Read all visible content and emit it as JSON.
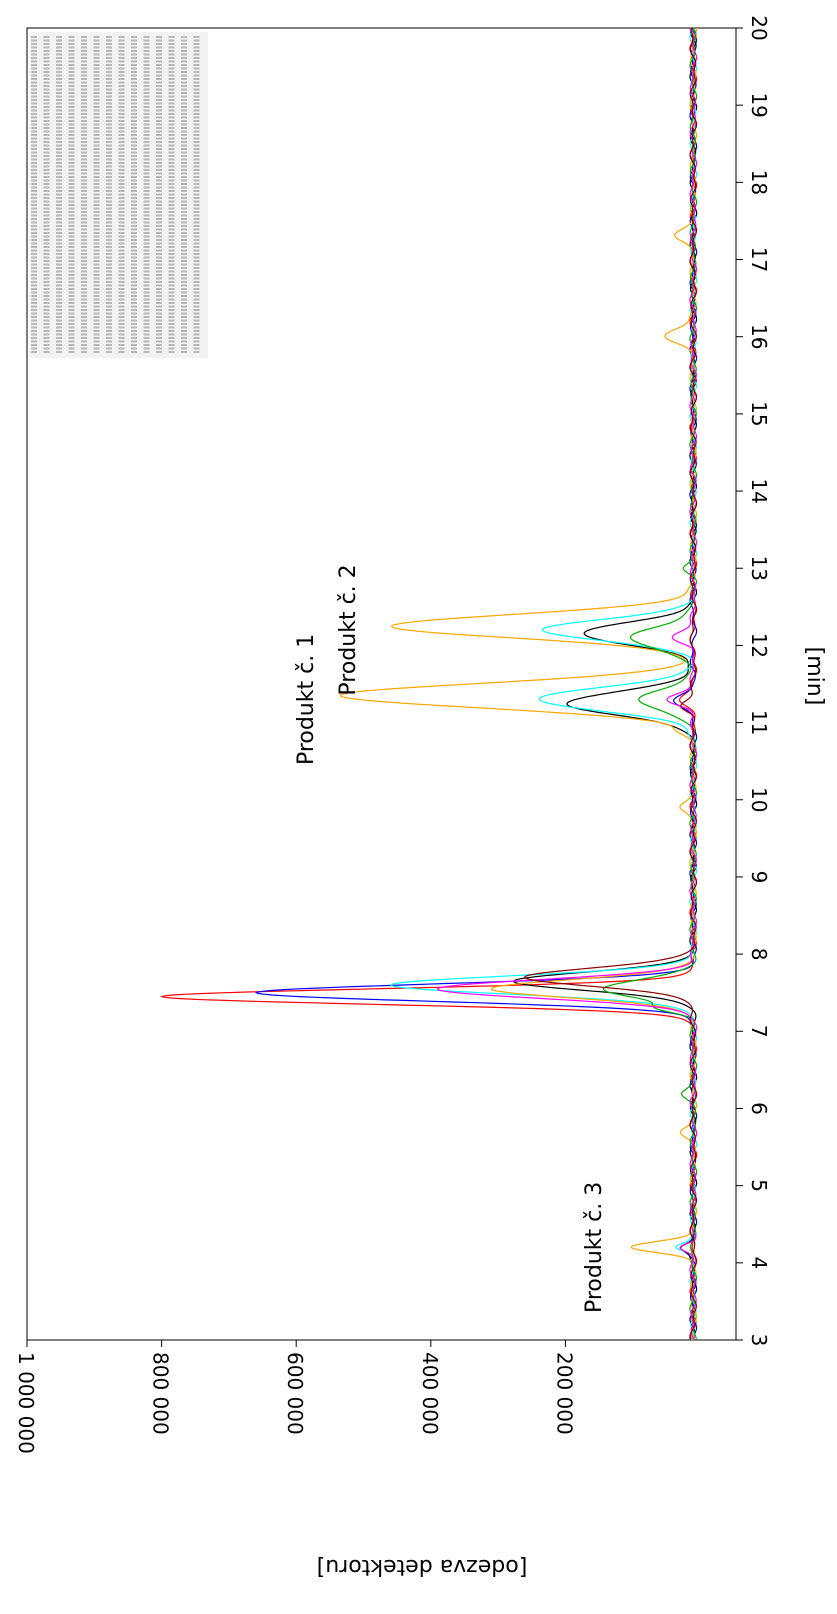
{
  "chart_data": {
    "type": "line",
    "orientation": "rotated-90-clockwise",
    "xlabel": "[min]",
    "ylabel": "[odezva detektoru]",
    "xlim": [
      3,
      20
    ],
    "ylim": [
      0,
      1000000
    ],
    "x_ticks": [
      "3",
      "4",
      "5",
      "6",
      "7",
      "8",
      "9",
      "10",
      "11",
      "12",
      "13",
      "14",
      "15",
      "16",
      "17",
      "18",
      "19",
      "20"
    ],
    "y_ticks": [
      "1 000 000",
      "800 000",
      "600 000",
      "400 000",
      "200 000"
    ],
    "annotations": [
      {
        "text": "Produkt č. 1",
        "x": 11.3
      },
      {
        "text": "Produkt č. 2",
        "x": 12.2
      },
      {
        "text": "Produkt č. 3",
        "x": 4.2
      }
    ],
    "baseline": 10000,
    "series": [
      {
        "color": "#FF0000",
        "peaks": [
          {
            "x": 7.45,
            "y": 790000,
            "w": 0.1
          }
        ],
        "bumps": [
          {
            "x": 11.3,
            "y": 16000,
            "w": 0.08
          }
        ]
      },
      {
        "color": "#0000FF",
        "peaks": [
          {
            "x": 7.5,
            "y": 650000,
            "w": 0.11
          }
        ],
        "bumps": [
          {
            "x": 11.3,
            "y": 28000,
            "w": 0.08
          },
          {
            "x": 4.2,
            "y": 16000,
            "w": 0.05
          }
        ]
      },
      {
        "color": "#000000",
        "peaks": [
          {
            "x": 7.65,
            "y": 265000,
            "w": 0.12
          },
          {
            "x": 11.25,
            "y": 190000,
            "w": 0.15
          },
          {
            "x": 12.15,
            "y": 165000,
            "w": 0.14
          }
        ],
        "bumps": [
          {
            "x": 4.2,
            "y": 22000,
            "w": 0.05
          }
        ]
      },
      {
        "color": "#00FFFF",
        "peaks": [
          {
            "x": 7.6,
            "y": 450000,
            "w": 0.12
          },
          {
            "x": 11.3,
            "y": 230000,
            "w": 0.15
          },
          {
            "x": 12.2,
            "y": 220000,
            "w": 0.14
          }
        ],
        "bumps": [
          {
            "x": 4.2,
            "y": 30000,
            "w": 0.05
          }
        ]
      },
      {
        "color": "#FFA500",
        "peaks": [
          {
            "x": 7.55,
            "y": 300000,
            "w": 0.12
          },
          {
            "x": 11.35,
            "y": 520000,
            "w": 0.16
          },
          {
            "x": 12.25,
            "y": 450000,
            "w": 0.15
          }
        ],
        "bumps": [
          {
            "x": 4.2,
            "y": 90000,
            "w": 0.07
          },
          {
            "x": 16.0,
            "y": 40000,
            "w": 0.1
          },
          {
            "x": 17.3,
            "y": 30000,
            "w": 0.08
          },
          {
            "x": 5.7,
            "y": 16000,
            "w": 0.06
          },
          {
            "x": 9.9,
            "y": 18000,
            "w": 0.06
          },
          {
            "x": 10.9,
            "y": 20000,
            "w": 0.06
          }
        ]
      },
      {
        "color": "#00B000",
        "peaks": [
          {
            "x": 7.55,
            "y": 130000,
            "w": 0.12
          },
          {
            "x": 11.3,
            "y": 80000,
            "w": 0.14
          },
          {
            "x": 12.1,
            "y": 95000,
            "w": 0.14
          }
        ],
        "bumps": [
          {
            "x": 7.3,
            "y": 45000,
            "w": 0.06
          },
          {
            "x": 6.2,
            "y": 14000,
            "w": 0.06
          },
          {
            "x": 13.0,
            "y": 14000,
            "w": 0.06
          }
        ]
      },
      {
        "color": "#FF00FF",
        "peaks": [
          {
            "x": 7.55,
            "y": 380000,
            "w": 0.12
          }
        ],
        "bumps": [
          {
            "x": 11.3,
            "y": 40000,
            "w": 0.08
          },
          {
            "x": 12.1,
            "y": 30000,
            "w": 0.08
          },
          {
            "x": 4.2,
            "y": 20000,
            "w": 0.05
          }
        ]
      },
      {
        "color": "#8B0000",
        "peaks": [
          {
            "x": 7.7,
            "y": 250000,
            "w": 0.12
          }
        ],
        "bumps": [
          {
            "x": 11.2,
            "y": 18000,
            "w": 0.07
          }
        ]
      }
    ]
  }
}
